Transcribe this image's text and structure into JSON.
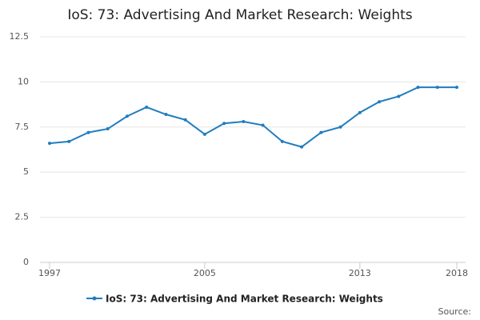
{
  "chart_data": {
    "type": "line",
    "title": "IoS: 73: Advertising And Market Research: Weights",
    "x": [
      1997,
      1998,
      1999,
      2000,
      2001,
      2002,
      2003,
      2004,
      2005,
      2006,
      2007,
      2008,
      2009,
      2010,
      2011,
      2012,
      2013,
      2014,
      2015,
      2016,
      2017,
      2018
    ],
    "series": [
      {
        "name": "IoS: 73: Advertising And Market Research: Weights",
        "color": "#1f7dbf",
        "values": [
          6.6,
          6.7,
          7.2,
          7.4,
          8.1,
          8.6,
          8.2,
          7.9,
          7.1,
          7.7,
          7.8,
          7.6,
          6.7,
          6.4,
          7.2,
          7.5,
          8.3,
          8.9,
          9.2,
          9.7,
          9.7,
          9.7
        ]
      }
    ],
    "xlim": [
      1997,
      2018
    ],
    "xticks": [
      1997,
      2005,
      2013,
      2018
    ],
    "ylim": [
      0,
      12.5
    ],
    "yticks": [
      0,
      2.5,
      5,
      7.5,
      10,
      12.5
    ],
    "grid": true,
    "source": "Source:"
  }
}
